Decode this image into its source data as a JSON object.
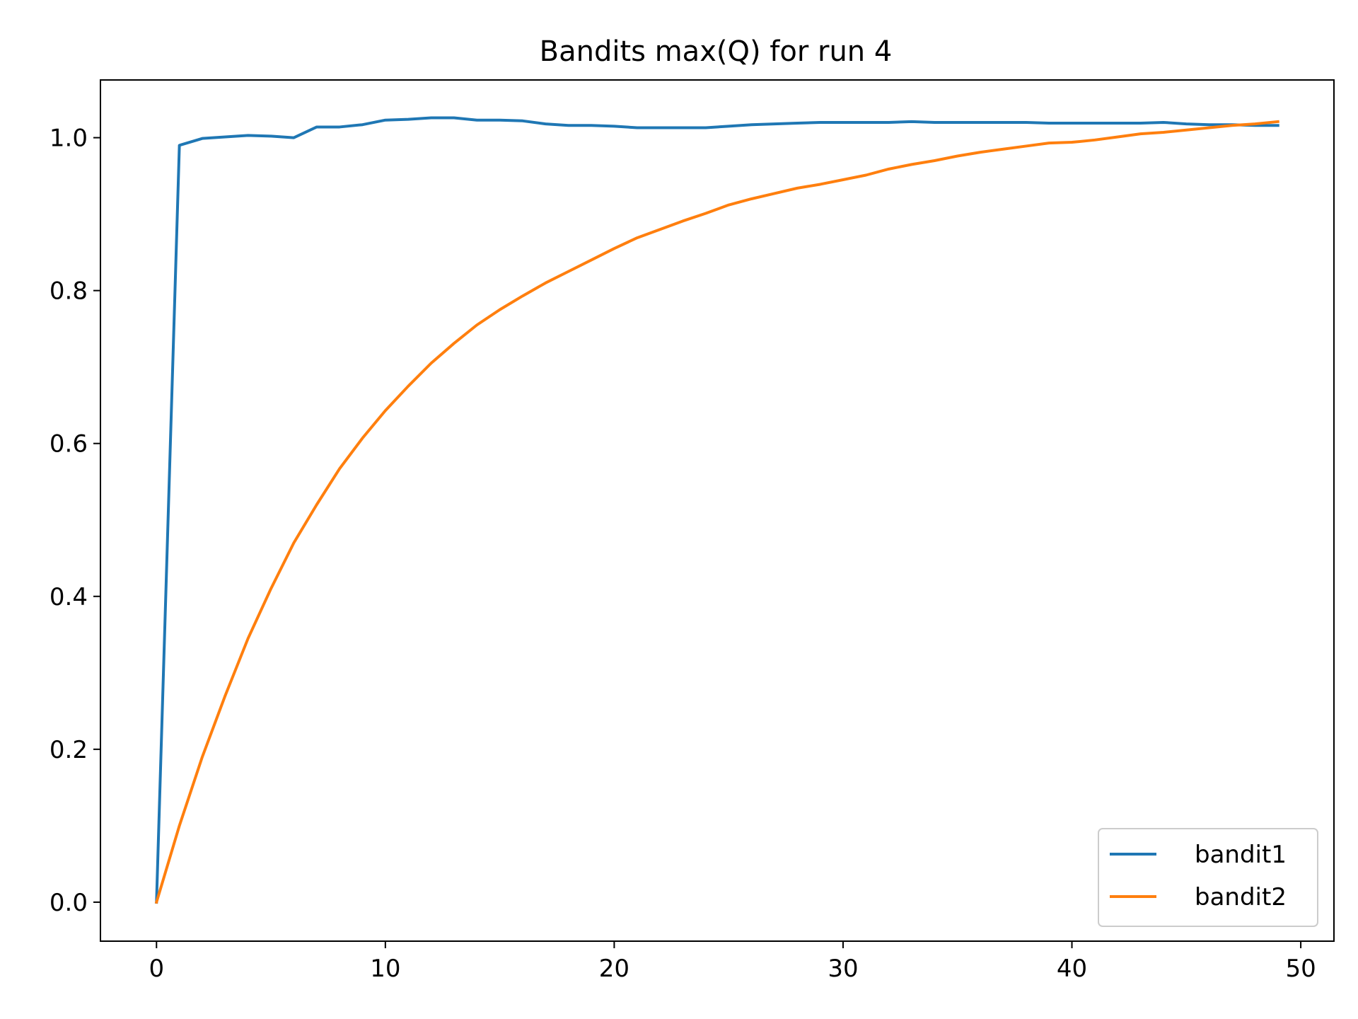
{
  "chart_data": {
    "type": "line",
    "title": "Bandits max(Q) for run 4",
    "xlabel": "",
    "ylabel": "",
    "xlim": [
      -2.45,
      51.45
    ],
    "ylim": [
      -0.051,
      1.0755
    ],
    "xticks": [
      0,
      10,
      20,
      30,
      40,
      50
    ],
    "xtick_labels": [
      "0",
      "10",
      "20",
      "30",
      "40",
      "50"
    ],
    "yticks": [
      0.0,
      0.2,
      0.4,
      0.6,
      0.8,
      1.0
    ],
    "ytick_labels": [
      "0.0",
      "0.2",
      "0.4",
      "0.6",
      "0.8",
      "1.0"
    ],
    "grid": false,
    "legend_position": "lower-right",
    "x": [
      0,
      1,
      2,
      3,
      4,
      5,
      6,
      7,
      8,
      9,
      10,
      11,
      12,
      13,
      14,
      15,
      16,
      17,
      18,
      19,
      20,
      21,
      22,
      23,
      24,
      25,
      26,
      27,
      28,
      29,
      30,
      31,
      32,
      33,
      34,
      35,
      36,
      37,
      38,
      39,
      40,
      41,
      42,
      43,
      44,
      45,
      46,
      47,
      48,
      49
    ],
    "series": [
      {
        "name": "bandit1",
        "color": "#1f77b4",
        "values": [
          0.0,
          0.99,
          0.999,
          1.001,
          1.003,
          1.002,
          1.0,
          1.014,
          1.014,
          1.017,
          1.023,
          1.024,
          1.026,
          1.026,
          1.023,
          1.023,
          1.022,
          1.018,
          1.016,
          1.016,
          1.015,
          1.013,
          1.013,
          1.013,
          1.013,
          1.015,
          1.017,
          1.018,
          1.019,
          1.02,
          1.02,
          1.02,
          1.02,
          1.021,
          1.02,
          1.02,
          1.02,
          1.02,
          1.02,
          1.019,
          1.019,
          1.019,
          1.019,
          1.019,
          1.02,
          1.018,
          1.017,
          1.017,
          1.016,
          1.016
        ]
      },
      {
        "name": "bandit2",
        "color": "#ff7f0e",
        "values": [
          0.0,
          0.1,
          0.19,
          0.27,
          0.345,
          0.41,
          0.47,
          0.52,
          0.567,
          0.607,
          0.643,
          0.675,
          0.705,
          0.731,
          0.755,
          0.775,
          0.793,
          0.81,
          0.825,
          0.84,
          0.855,
          0.869,
          0.88,
          0.891,
          0.901,
          0.912,
          0.92,
          0.927,
          0.934,
          0.939,
          0.945,
          0.951,
          0.959,
          0.965,
          0.97,
          0.976,
          0.981,
          0.985,
          0.989,
          0.993,
          0.994,
          0.997,
          1.001,
          1.005,
          1.007,
          1.01,
          1.013,
          1.016,
          1.018,
          1.021
        ]
      }
    ]
  }
}
